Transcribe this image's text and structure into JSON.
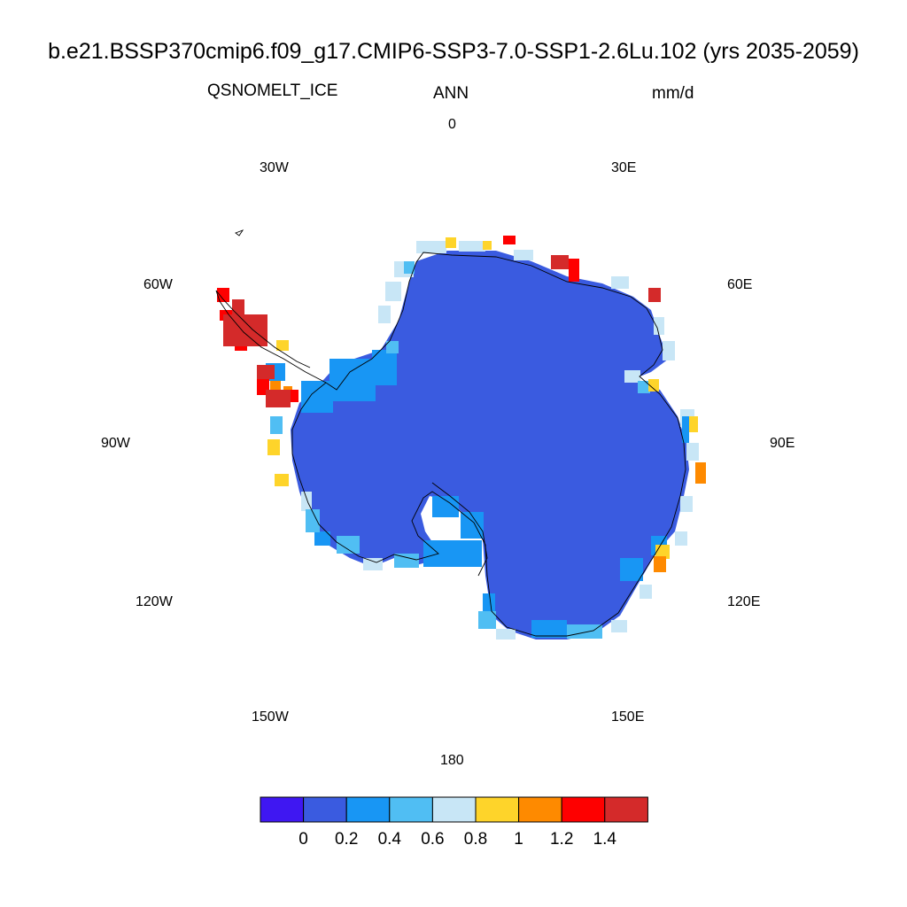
{
  "title": "b.e21.BSSP370cmip6.f09_g17.CMIP6-SSP3-7.0-SSP1-2.6Lu.102 (yrs 2035-2059)",
  "variable": "QSNOMELT_ICE",
  "season": "ANN",
  "units": "mm/d",
  "longitude_labels": [
    "0",
    "30E",
    "60E",
    "90E",
    "120E",
    "150E",
    "180",
    "150W",
    "120W",
    "90W",
    "60W",
    "30W"
  ],
  "colorbar": {
    "colors": [
      "#3f17f2",
      "#3a5be0",
      "#1896f4",
      "#50bef3",
      "#c8e6f6",
      "#fed42a",
      "#fe8a00",
      "#fe0000",
      "#d42a2a"
    ],
    "tick_labels": [
      "0",
      "0.2",
      "0.4",
      "0.6",
      "0.8",
      "1",
      "1.2",
      "1.4"
    ]
  },
  "colors": {
    "interior": "#3a5be0",
    "coast_outline": "#000000"
  }
}
